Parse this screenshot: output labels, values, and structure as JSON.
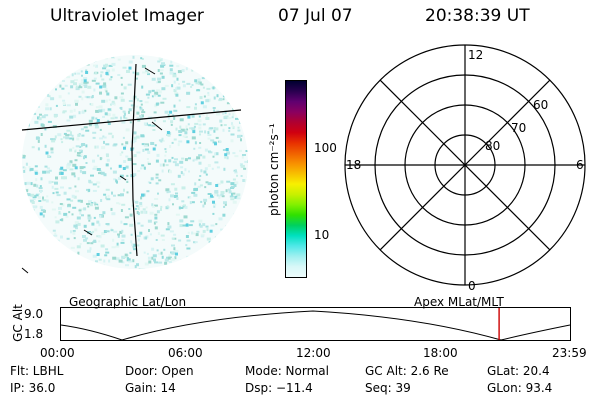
{
  "header": {
    "instrument": "Ultraviolet Imager",
    "date": "07 Jul 07",
    "time": "20:38:39 UT"
  },
  "colorbar": {
    "unit_label": "photon cm⁻²s⁻¹",
    "ticks": [
      "100",
      "10"
    ],
    "colors": [
      "#000030",
      "#2a0050",
      "#600070",
      "#8a0060",
      "#b00030",
      "#d00010",
      "#e83000",
      "#f06000",
      "#f89000",
      "#f8c000",
      "#f8f000",
      "#c8f000",
      "#80f000",
      "#30e000",
      "#00d060",
      "#00e0c0",
      "#50e8e8",
      "#a0f0f0",
      "#d8f8f8",
      "#eefcfc"
    ]
  },
  "image_map": {
    "labels": {
      "geo": "Geographic Lat/Lon"
    }
  },
  "polar_plot": {
    "labels": {
      "mlt_12": "12",
      "mlt_18": "18",
      "mlt_6": "6",
      "mlt_0": "0",
      "lat_60": "60",
      "lat_70": "70",
      "lat_80": "80"
    },
    "title": "Apex MLat/MLT"
  },
  "timeline": {
    "ylabel": "GC Alt",
    "yticks": [
      "9.0",
      "1.8"
    ],
    "xticks": [
      "00:00",
      "06:00",
      "12:00",
      "18:00",
      "23:59"
    ],
    "marker_time_hours": 20.64,
    "marker_color": "#cc0000"
  },
  "info": {
    "flt": "Flt: LBHL",
    "ip": "IP: 36.0",
    "door": "Door: Open",
    "gain": "Gain: 14",
    "mode": "Mode: Normal",
    "dsp": "Dsp:  −11.4",
    "gcalt": "GC Alt: 2.6 Re",
    "seq": "Seq: 39",
    "glat": "GLat:  20.4",
    "glon": "GLon:  93.4"
  }
}
